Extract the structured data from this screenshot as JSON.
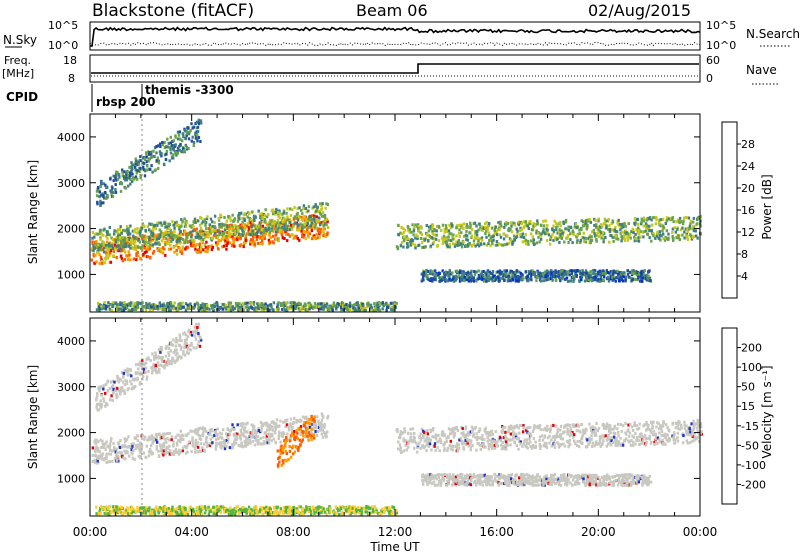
{
  "header": {
    "station": "Blackstone (fitACF)",
    "beam": "Beam 06",
    "date": "02/Aug/2015"
  },
  "top_panels": {
    "nsky_label": "N.Sky",
    "nsky_ticks": [
      "10^5",
      "10^0"
    ],
    "nsearch_label": "N.Search",
    "nsearch_ticks": [
      "10^5",
      "10^0"
    ],
    "freq_label": "Freq.",
    "freq_unit": "[MHz]",
    "freq_ticks": [
      "18",
      "8"
    ],
    "nave_label": "Nave",
    "nave_ticks": [
      "60",
      "0"
    ],
    "cpid_label": "CPID",
    "cpid_segments": [
      {
        "label": "rbsp 200",
        "start_hour": 0.0
      },
      {
        "label": "themis -3300",
        "start_hour": 2.0
      }
    ]
  },
  "x_axis": {
    "label": "Time UT",
    "ticks": [
      "00:00",
      "04:00",
      "08:00",
      "12:00",
      "16:00",
      "20:00",
      "00:00"
    ]
  },
  "power_colorbar": {
    "label": "Power [dB]",
    "ticks": [
      "28",
      "24",
      "20",
      "16",
      "12",
      "8",
      "4"
    ],
    "colors": [
      "#0033cc",
      "#1f4e9c",
      "#3f7f7f",
      "#6aa24a",
      "#c8c81a",
      "#ff9900",
      "#ff5a00",
      "#e80000"
    ]
  },
  "velocity_colorbar": {
    "label": "Velocity [m s⁻¹]",
    "ticks": [
      "200",
      "100",
      "50",
      "15",
      "-15",
      "-50",
      "-100",
      "-200"
    ],
    "colors": [
      "#e80000",
      "#ff5a00",
      "#ff9900",
      "#ffcc33",
      "#c8c8c0",
      "#55b43c",
      "#2e8b57",
      "#2a5db0",
      "#1f35c8"
    ]
  },
  "chart_data": [
    {
      "type": "heatmap",
      "panel": "power",
      "ylabel": "Slant Range [km]",
      "xlabel": "",
      "xlim": [
        0,
        24
      ],
      "ylim": [
        180,
        4500
      ],
      "yticks": [
        "1000",
        "2000",
        "3000",
        "4000"
      ],
      "color_quantity": "Power [dB]",
      "regions": [
        {
          "t0": 0.0,
          "t1": 9.3,
          "r_start": 1500,
          "r_end": 2100,
          "value": 24
        },
        {
          "t0": 0.0,
          "t1": 9.3,
          "r_start": 1750,
          "r_end": 2350,
          "value": 14
        },
        {
          "t0": 0.2,
          "t1": 4.3,
          "r_start": 2750,
          "r_end": 4200,
          "value": 10
        },
        {
          "t0": 0.2,
          "t1": 12.0,
          "r_start": 300,
          "r_end": 300,
          "value": 12
        },
        {
          "t0": 12.0,
          "t1": 24.0,
          "r_start": 1850,
          "r_end": 2050,
          "value": 14
        },
        {
          "t0": 13.0,
          "t1": 22.0,
          "r_start": 1000,
          "r_end": 1000,
          "value": 8
        }
      ]
    },
    {
      "type": "heatmap",
      "panel": "velocity",
      "ylabel": "Slant Range [km]",
      "xlabel": "Time UT",
      "xlim": [
        0,
        24
      ],
      "ylim": [
        180,
        4500
      ],
      "yticks": [
        "1000",
        "2000",
        "3000",
        "4000"
      ],
      "color_quantity": "Velocity [m s^-1]",
      "regions": [
        {
          "t0": 0.0,
          "t1": 9.3,
          "r_start": 1600,
          "r_end": 2200,
          "value": 0
        },
        {
          "t0": 0.2,
          "t1": 4.3,
          "r_start": 2750,
          "r_end": 4200,
          "value": 0
        },
        {
          "t0": 7.3,
          "t1": 8.8,
          "r_start": 1500,
          "r_end": 2200,
          "value": -60
        },
        {
          "t0": 12.0,
          "t1": 24.0,
          "r_start": 1850,
          "r_end": 2050,
          "value": 0
        },
        {
          "t0": 13.0,
          "t1": 22.0,
          "r_start": 1000,
          "r_end": 1000,
          "value": 0
        },
        {
          "t0": 0.2,
          "t1": 12.0,
          "r_start": 300,
          "r_end": 300,
          "value": 30
        }
      ]
    }
  ]
}
